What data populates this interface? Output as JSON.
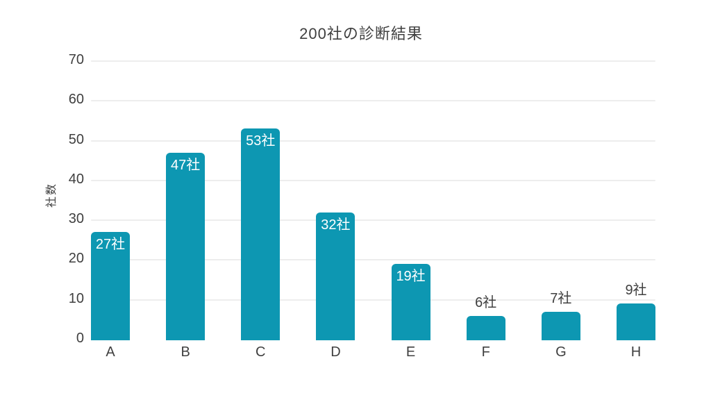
{
  "title": "200社の診断結果",
  "chart_data": {
    "type": "bar",
    "title": "200社の診断結果",
    "categories": [
      "A",
      "B",
      "C",
      "D",
      "E",
      "F",
      "G",
      "H"
    ],
    "values": [
      27,
      47,
      53,
      32,
      19,
      6,
      7,
      9
    ],
    "bar_labels": [
      "27社",
      "47社",
      "53社",
      "32社",
      "19社",
      "6社",
      "7社",
      "9社"
    ],
    "xlabel": "",
    "ylabel": "社数",
    "ylim": [
      0,
      70
    ],
    "yticks": [
      0,
      10,
      20,
      30,
      40,
      50,
      60,
      70
    ],
    "grid": true,
    "legend": "none",
    "label_inside_threshold": 10,
    "colors": {
      "bar": "#0d97b2",
      "bar_label_inside": "#ffffff",
      "bar_label_outside": "#3f3f3f",
      "grid": "#ededed",
      "text": "#3f3f3f",
      "background": "#ffffff"
    }
  }
}
